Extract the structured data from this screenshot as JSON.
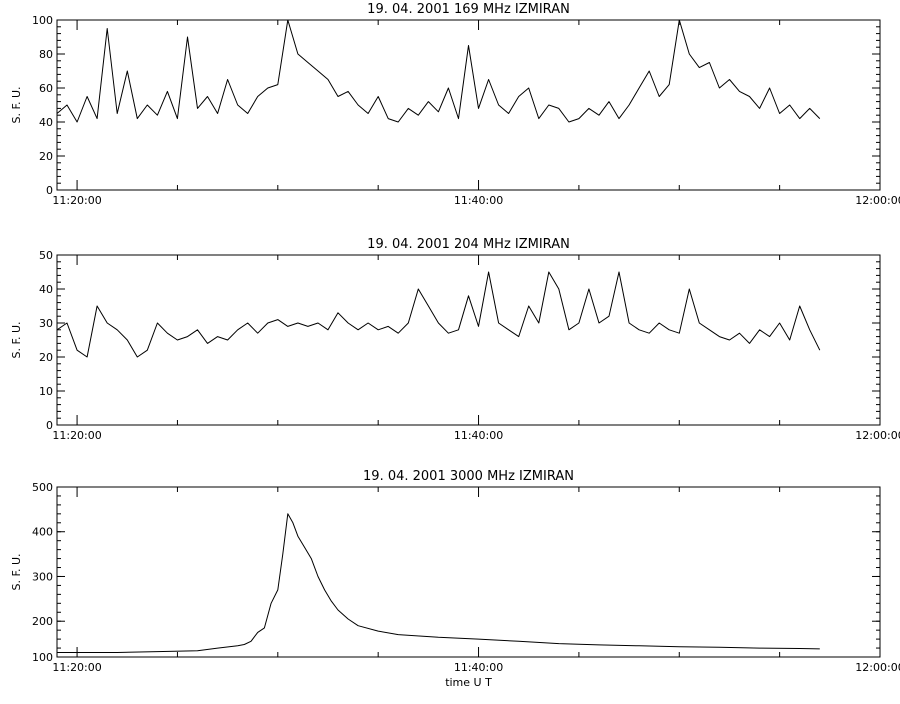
{
  "chart_data": [
    {
      "type": "line",
      "title": "19.  04.  2001    169 MHz     IZMIRAN",
      "ylabel": "S. F. U.",
      "xlabel": "",
      "xlim": [
        "11:19:00",
        "12:00:00"
      ],
      "ylim": [
        0,
        100
      ],
      "yticks": [
        "0",
        "20",
        "40",
        "60",
        "80",
        "100"
      ],
      "xticks": [
        "11:20:00",
        "11:40:00",
        "12:00:00"
      ],
      "grid": false,
      "series": [
        {
          "color": "#000000",
          "x": [
            "11:19:00",
            "11:19:30",
            "11:20:00",
            "11:20:30",
            "11:21:00",
            "11:21:30",
            "11:22:00",
            "11:22:30",
            "11:23:00",
            "11:23:30",
            "11:24:00",
            "11:24:30",
            "11:25:00",
            "11:25:30",
            "11:26:00",
            "11:26:30",
            "11:27:00",
            "11:27:30",
            "11:28:00",
            "11:28:30",
            "11:29:00",
            "11:29:30",
            "11:30:00",
            "11:30:30",
            "11:31:00",
            "11:31:30",
            "11:32:00",
            "11:32:30",
            "11:33:00",
            "11:33:30",
            "11:34:00",
            "11:34:30",
            "11:35:00",
            "11:35:30",
            "11:36:00",
            "11:36:30",
            "11:37:00",
            "11:37:30",
            "11:38:00",
            "11:38:30",
            "11:39:00",
            "11:39:30",
            "11:40:00",
            "11:40:30",
            "11:41:00",
            "11:41:30",
            "11:42:00",
            "11:42:30",
            "11:43:00",
            "11:43:30",
            "11:44:00",
            "11:44:30",
            "11:45:00",
            "11:45:30",
            "11:46:00",
            "11:46:30",
            "11:47:00",
            "11:47:30",
            "11:48:00",
            "11:48:30",
            "11:49:00",
            "11:49:30",
            "11:50:00",
            "11:50:30",
            "11:51:00",
            "11:51:30",
            "11:52:00",
            "11:52:30",
            "11:53:00",
            "11:53:30",
            "11:54:00",
            "11:54:30",
            "11:55:00",
            "11:55:30",
            "11:56:00",
            "11:56:30",
            "11:57:00"
          ],
          "y": [
            45,
            50,
            40,
            55,
            42,
            95,
            45,
            70,
            42,
            50,
            44,
            58,
            42,
            90,
            48,
            55,
            45,
            65,
            50,
            45,
            55,
            60,
            62,
            100,
            80,
            75,
            70,
            65,
            55,
            58,
            50,
            45,
            55,
            42,
            40,
            48,
            44,
            52,
            46,
            60,
            42,
            85,
            48,
            65,
            50,
            45,
            55,
            60,
            42,
            50,
            48,
            40,
            42,
            48,
            44,
            52,
            42,
            50,
            60,
            70,
            55,
            62,
            100,
            80,
            72,
            75,
            60,
            65,
            58,
            55,
            48,
            60,
            45,
            50,
            42,
            48,
            42
          ]
        }
      ]
    },
    {
      "type": "line",
      "title": "19.  04.  2001    204 MHz     IZMIRAN",
      "ylabel": "S. F. U.",
      "xlabel": "",
      "xlim": [
        "11:19:00",
        "12:00:00"
      ],
      "ylim": [
        0,
        50
      ],
      "yticks": [
        "0",
        "10",
        "20",
        "30",
        "40",
        "50"
      ],
      "xticks": [
        "11:20:00",
        "11:40:00",
        "12:00:00"
      ],
      "grid": false,
      "series": [
        {
          "color": "#000000",
          "x": [
            "11:19:00",
            "11:19:30",
            "11:20:00",
            "11:20:30",
            "11:21:00",
            "11:21:30",
            "11:22:00",
            "11:22:30",
            "11:23:00",
            "11:23:30",
            "11:24:00",
            "11:24:30",
            "11:25:00",
            "11:25:30",
            "11:26:00",
            "11:26:30",
            "11:27:00",
            "11:27:30",
            "11:28:00",
            "11:28:30",
            "11:29:00",
            "11:29:30",
            "11:30:00",
            "11:30:30",
            "11:31:00",
            "11:31:30",
            "11:32:00",
            "11:32:30",
            "11:33:00",
            "11:33:30",
            "11:34:00",
            "11:34:30",
            "11:35:00",
            "11:35:30",
            "11:36:00",
            "11:36:30",
            "11:37:00",
            "11:37:30",
            "11:38:00",
            "11:38:30",
            "11:39:00",
            "11:39:30",
            "11:40:00",
            "11:40:30",
            "11:41:00",
            "11:41:30",
            "11:42:00",
            "11:42:30",
            "11:43:00",
            "11:43:30",
            "11:44:00",
            "11:44:30",
            "11:45:00",
            "11:45:30",
            "11:46:00",
            "11:46:30",
            "11:47:00",
            "11:47:30",
            "11:48:00",
            "11:48:30",
            "11:49:00",
            "11:49:30",
            "11:50:00",
            "11:50:30",
            "11:51:00",
            "11:51:30",
            "11:52:00",
            "11:52:30",
            "11:53:00",
            "11:53:30",
            "11:54:00",
            "11:54:30",
            "11:55:00",
            "11:55:30",
            "11:56:00",
            "11:56:30",
            "11:57:00"
          ],
          "y": [
            28,
            30,
            22,
            20,
            35,
            30,
            28,
            25,
            20,
            22,
            30,
            27,
            25,
            26,
            28,
            24,
            26,
            25,
            28,
            30,
            27,
            30,
            31,
            29,
            30,
            29,
            30,
            28,
            33,
            30,
            28,
            30,
            28,
            29,
            27,
            30,
            40,
            35,
            30,
            27,
            28,
            38,
            29,
            45,
            30,
            28,
            26,
            35,
            30,
            45,
            40,
            28,
            30,
            40,
            30,
            32,
            45,
            30,
            28,
            27,
            30,
            28,
            27,
            40,
            30,
            28,
            26,
            25,
            27,
            24,
            28,
            26,
            30,
            25,
            35,
            28,
            22
          ]
        }
      ]
    },
    {
      "type": "line",
      "title": "19.  04.  2001    3000 MHz     IZMIRAN",
      "ylabel": "S. F. U.",
      "xlabel": "time  U T",
      "xlim": [
        "11:19:00",
        "12:00:00"
      ],
      "ylim": [
        120,
        500
      ],
      "yticks": [
        "100",
        "200",
        "300",
        "400",
        "500"
      ],
      "xticks": [
        "11:20:00",
        "11:40:00",
        "12:00:00"
      ],
      "grid": false,
      "series": [
        {
          "color": "#000000",
          "x": [
            "11:19:00",
            "11:20:00",
            "11:22:00",
            "11:24:00",
            "11:26:00",
            "11:27:00",
            "11:28:00",
            "11:28:20",
            "11:28:40",
            "11:29:00",
            "11:29:20",
            "11:29:40",
            "11:30:00",
            "11:30:15",
            "11:30:30",
            "11:30:45",
            "11:31:00",
            "11:31:20",
            "11:31:40",
            "11:32:00",
            "11:32:20",
            "11:32:40",
            "11:33:00",
            "11:33:30",
            "11:34:00",
            "11:35:00",
            "11:36:00",
            "11:38:00",
            "11:40:00",
            "11:42:00",
            "11:44:00",
            "11:46:00",
            "11:48:00",
            "11:50:00",
            "11:52:00",
            "11:54:00",
            "11:56:00",
            "11:57:00"
          ],
          "y": [
            130,
            130,
            130,
            132,
            134,
            140,
            145,
            148,
            155,
            175,
            185,
            240,
            270,
            350,
            440,
            420,
            390,
            365,
            340,
            300,
            270,
            245,
            225,
            205,
            190,
            178,
            170,
            164,
            160,
            155,
            150,
            147,
            145,
            143,
            142,
            140,
            139,
            138
          ]
        }
      ]
    }
  ]
}
